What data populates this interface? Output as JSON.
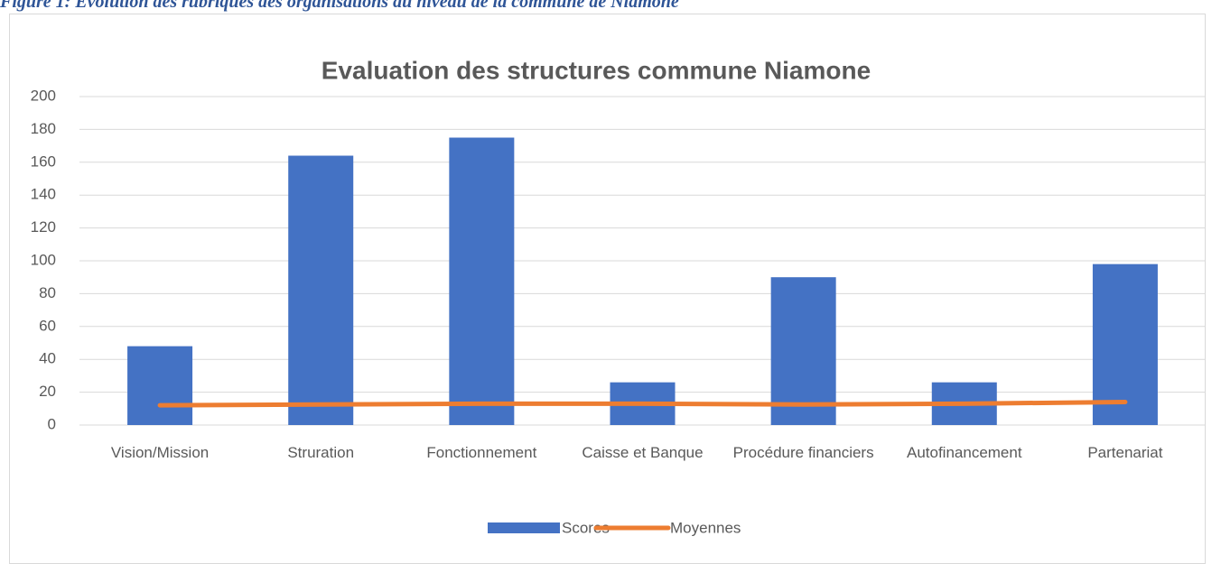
{
  "caption": "Figure 1: Evolution des rubriques des organisations au niveau de la commune de Niamone",
  "chart_data": {
    "type": "bar",
    "title": "Evaluation des structures commune Niamone",
    "categories": [
      "Vision/Mission",
      "Struration",
      "Fonctionnement",
      "Caisse et Banque",
      "Procédure financiers",
      "Autofinancement",
      "Partenariat"
    ],
    "series": [
      {
        "name": "Scores",
        "type": "bar",
        "color": "#4472c4",
        "values": [
          48,
          164,
          175,
          26,
          90,
          26,
          98
        ]
      },
      {
        "name": "Moyennes",
        "type": "line",
        "color": "#ed7d31",
        "values": [
          12,
          12.5,
          13,
          13,
          12.5,
          13,
          14
        ]
      }
    ],
    "ylim": [
      0,
      200
    ],
    "yticks": [
      0,
      20,
      40,
      60,
      80,
      100,
      120,
      140,
      160,
      180,
      200
    ],
    "grid": true,
    "legend": "bottom"
  }
}
